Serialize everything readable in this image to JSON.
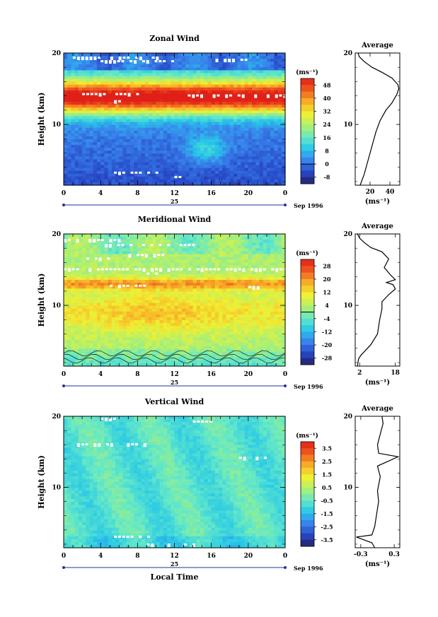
{
  "chart_data": [
    {
      "type": "heatmap",
      "title": "Zonal Wind",
      "xlabel": "",
      "ylabel": "Height (km)",
      "x_ticks": [
        "0",
        "4",
        "8",
        "12",
        "16",
        "20",
        "0"
      ],
      "xlim": [
        0,
        24
      ],
      "y_ticks": [
        "20",
        "10"
      ],
      "ylim": [
        1.5,
        20
      ],
      "date_label": "25",
      "date_suffix": "Sep 1996",
      "unit_label": "(ms⁻¹)",
      "colorbar_ticks": [
        "48",
        "40",
        "32",
        "24",
        "16",
        "8",
        "0",
        "-8"
      ],
      "colorbar_range": [
        -12,
        52
      ],
      "profile": {
        "title": "Average",
        "y_ticks": [
          "20",
          "10"
        ],
        "x_ticks": [
          "20",
          "40"
        ],
        "xlim": [
          5,
          50
        ],
        "xlabel": "(ms⁻¹)",
        "points": [
          [
            10,
            1.5
          ],
          [
            14,
            3
          ],
          [
            18,
            5
          ],
          [
            22,
            7
          ],
          [
            26,
            9
          ],
          [
            30,
            10.5
          ],
          [
            36,
            12
          ],
          [
            42,
            13
          ],
          [
            47,
            14.2
          ],
          [
            49,
            15
          ],
          [
            48,
            15.6
          ],
          [
            42,
            16.5
          ],
          [
            32,
            17.3
          ],
          [
            22,
            18
          ],
          [
            14,
            18.8
          ],
          [
            9,
            19.5
          ],
          [
            8,
            20
          ]
        ]
      }
    },
    {
      "type": "heatmap",
      "title": "Meridional Wind",
      "xlabel": "",
      "ylabel": "Height (km)",
      "x_ticks": [
        "0",
        "4",
        "8",
        "12",
        "16",
        "20",
        "0"
      ],
      "xlim": [
        0,
        24
      ],
      "y_ticks": [
        "20",
        "10"
      ],
      "ylim": [
        1.5,
        20
      ],
      "date_label": "25",
      "date_suffix": "Sep 1996",
      "unit_label": "(ms⁻¹)",
      "colorbar_ticks": [
        "28",
        "20",
        "12",
        "4",
        "-4",
        "-12",
        "-20",
        "-28"
      ],
      "colorbar_range": [
        -32,
        32
      ],
      "profile": {
        "title": "Average",
        "y_ticks": [
          "20",
          "10"
        ],
        "x_ticks": [
          "2",
          "18"
        ],
        "xlim": [
          0,
          20
        ],
        "xlabel": "(ms⁻¹)",
        "points": [
          [
            1,
            1.5
          ],
          [
            1.5,
            2.5
          ],
          [
            2.5,
            3
          ],
          [
            4,
            3.5
          ],
          [
            7,
            4.5
          ],
          [
            10,
            6
          ],
          [
            11,
            8
          ],
          [
            12,
            9.5
          ],
          [
            12,
            10.5
          ],
          [
            15,
            11.5
          ],
          [
            18,
            12.3
          ],
          [
            17,
            12.9
          ],
          [
            14,
            13.2
          ],
          [
            18,
            13.6
          ],
          [
            16,
            14.2
          ],
          [
            13,
            15.3
          ],
          [
            15,
            16.5
          ],
          [
            12,
            17.5
          ],
          [
            7,
            18.1
          ],
          [
            4,
            18.8
          ],
          [
            2,
            19.4
          ],
          [
            1,
            20
          ]
        ]
      }
    },
    {
      "type": "heatmap",
      "title": "Vertical Wind",
      "xlabel": "Local Time",
      "ylabel": "Height (km)",
      "x_ticks": [
        "0",
        "4",
        "8",
        "12",
        "16",
        "20",
        "0"
      ],
      "xlim": [
        0,
        24
      ],
      "y_ticks": [
        "20",
        "10"
      ],
      "ylim": [
        1.5,
        20
      ],
      "date_label": "25",
      "date_suffix": "Sep 1996",
      "unit_label": "(ms⁻¹)",
      "colorbar_ticks": [
        "3.5",
        "2.5",
        "1.5",
        "0.5",
        "-0.5",
        "-1.5",
        "-2.5",
        "-3.5"
      ],
      "colorbar_range": [
        -4,
        4
      ],
      "profile": {
        "title": "Average",
        "y_ticks": [
          "20",
          "10"
        ],
        "x_ticks": [
          "-0.3",
          "0.3"
        ],
        "xlim": [
          -0.4,
          0.4
        ],
        "xlabel": "(ms⁻¹)",
        "points": [
          [
            -0.05,
            1.5
          ],
          [
            -0.1,
            2.2
          ],
          [
            -0.38,
            3
          ],
          [
            -0.1,
            3.3
          ],
          [
            -0.05,
            4.5
          ],
          [
            -0.02,
            6
          ],
          [
            0.02,
            8
          ],
          [
            0.0,
            9.5
          ],
          [
            0.05,
            11.5
          ],
          [
            0.0,
            13
          ],
          [
            0.37,
            14.3
          ],
          [
            0.02,
            14.8
          ],
          [
            0.0,
            16
          ],
          [
            0.05,
            17.5
          ],
          [
            0.1,
            19
          ],
          [
            0.08,
            20
          ]
        ]
      }
    }
  ]
}
